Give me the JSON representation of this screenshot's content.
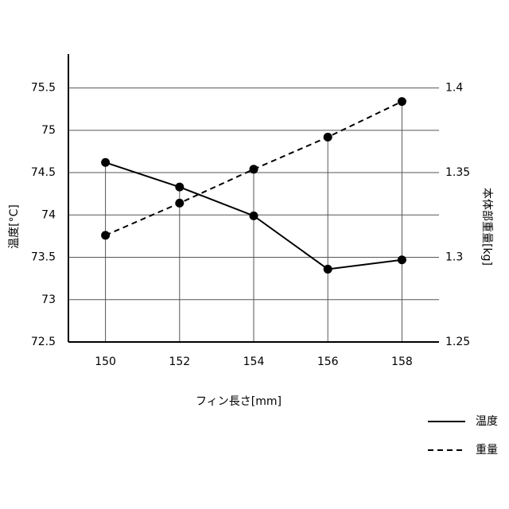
{
  "chart_data": {
    "type": "line",
    "x_label": "フィン長さ[mm]",
    "y_label": "温度[°C]",
    "y2_label": "本体部重量[kg]",
    "x": [
      150,
      152,
      154,
      156,
      158
    ],
    "series": [
      {
        "name": "温度",
        "color": "#000000",
        "dash": "solid",
        "values": [
          74.62,
          74.33,
          73.99,
          73.36,
          73.47
        ]
      },
      {
        "name": "重量",
        "color": "#000000",
        "dash": "dashed",
        "axis": "y2",
        "values": [
          1.313,
          1.332,
          1.352,
          1.371,
          1.392
        ]
      }
    ],
    "xlim": [
      149,
      159
    ],
    "xticks": [
      150,
      152,
      154,
      156,
      158
    ],
    "ylim": [
      72.5,
      75.9
    ],
    "yticks": [
      72.5,
      73.0,
      73.5,
      74.0,
      74.5,
      75.0,
      75.5
    ],
    "y2lim": [
      1.25,
      1.42
    ],
    "y2ticks": [
      1.25,
      1.3,
      1.35,
      1.4
    ],
    "grid": true,
    "legend": "bottom-right"
  }
}
